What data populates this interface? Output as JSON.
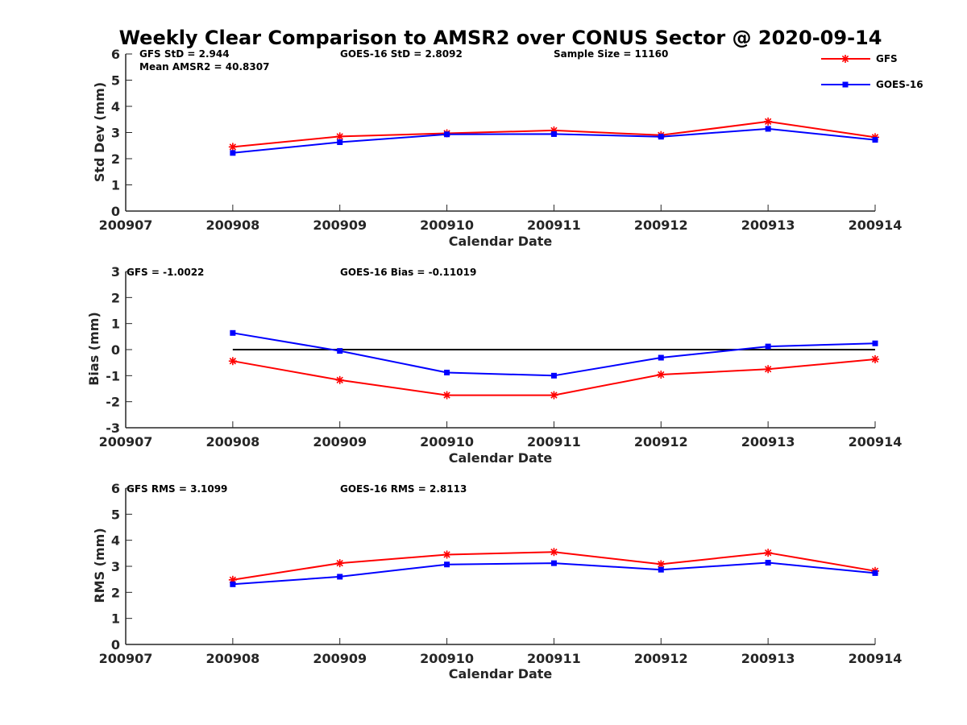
{
  "title": "Weekly Clear Comparison to AMSR2 over CONUS Sector @ 2020-09-14",
  "legend": [
    {
      "name": "GFS",
      "color": "#ff0000",
      "marker": "asterisk"
    },
    {
      "name": "GOES-16",
      "color": "#0000ff",
      "marker": "square"
    }
  ],
  "panels": [
    {
      "annotations": [
        "GFS StD = 2.944",
        "GOES-16 StD = 2.8092",
        "Sample Size = 11160",
        "Mean AMSR2 = 40.8307"
      ],
      "xlabel": "Calendar Date",
      "ylabel": "Std Dev (mm)"
    },
    {
      "annotations": [
        "GFS = -1.0022",
        "GOES-16 Bias  = -0.11019"
      ],
      "xlabel": "Calendar Date",
      "ylabel": "Bias (mm)"
    },
    {
      "annotations": [
        "GFS RMS = 3.1099",
        "GOES-16 RMS = 2.8113"
      ],
      "xlabel": "Calendar Date",
      "ylabel": "RMS (mm)"
    }
  ],
  "chart_data": [
    {
      "type": "line",
      "title": "Weekly Clear Comparison to AMSR2 over CONUS Sector @ 2020-09-14",
      "xlabel": "Calendar Date",
      "ylabel": "Std Dev (mm)",
      "categories": [
        "200907",
        "200908",
        "200909",
        "200910",
        "200911",
        "200912",
        "200913",
        "200914"
      ],
      "ylim": [
        0,
        6
      ],
      "yticks": [
        0,
        1,
        2,
        3,
        4,
        5,
        6
      ],
      "zero_line": false,
      "series": [
        {
          "name": "GFS",
          "color": "#ff0000",
          "marker": "asterisk",
          "x": [
            "200908",
            "200909",
            "200910",
            "200911",
            "200912",
            "200913",
            "200914"
          ],
          "values": [
            2.45,
            2.85,
            2.97,
            3.08,
            2.9,
            3.42,
            2.82
          ]
        },
        {
          "name": "GOES-16",
          "color": "#0000ff",
          "marker": "square",
          "x": [
            "200908",
            "200909",
            "200910",
            "200911",
            "200912",
            "200913",
            "200914"
          ],
          "values": [
            2.22,
            2.63,
            2.93,
            2.94,
            2.84,
            3.14,
            2.72
          ]
        }
      ]
    },
    {
      "type": "line",
      "xlabel": "Calendar Date",
      "ylabel": "Bias (mm)",
      "categories": [
        "200907",
        "200908",
        "200909",
        "200910",
        "200911",
        "200912",
        "200913",
        "200914"
      ],
      "ylim": [
        -3,
        3
      ],
      "yticks": [
        -3,
        -2,
        -1,
        0,
        1,
        2,
        3
      ],
      "zero_line": true,
      "series": [
        {
          "name": "GFS",
          "color": "#ff0000",
          "marker": "asterisk",
          "x": [
            "200908",
            "200909",
            "200910",
            "200911",
            "200912",
            "200913",
            "200914"
          ],
          "values": [
            -0.44,
            -1.17,
            -1.75,
            -1.75,
            -0.96,
            -0.75,
            -0.37
          ]
        },
        {
          "name": "GOES-16",
          "color": "#0000ff",
          "marker": "square",
          "x": [
            "200908",
            "200909",
            "200910",
            "200911",
            "200912",
            "200913",
            "200914"
          ],
          "values": [
            0.64,
            -0.05,
            -0.88,
            -1.0,
            -0.31,
            0.12,
            0.24
          ]
        }
      ]
    },
    {
      "type": "line",
      "xlabel": "Calendar Date",
      "ylabel": "RMS (mm)",
      "categories": [
        "200907",
        "200908",
        "200909",
        "200910",
        "200911",
        "200912",
        "200913",
        "200914"
      ],
      "ylim": [
        0,
        6
      ],
      "yticks": [
        0,
        1,
        2,
        3,
        4,
        5,
        6
      ],
      "zero_line": false,
      "series": [
        {
          "name": "GFS",
          "color": "#ff0000",
          "marker": "asterisk",
          "x": [
            "200908",
            "200909",
            "200910",
            "200911",
            "200912",
            "200913",
            "200914"
          ],
          "values": [
            2.48,
            3.12,
            3.45,
            3.55,
            3.08,
            3.52,
            2.82
          ]
        },
        {
          "name": "GOES-16",
          "color": "#0000ff",
          "marker": "square",
          "x": [
            "200908",
            "200909",
            "200910",
            "200911",
            "200912",
            "200913",
            "200914"
          ],
          "values": [
            2.31,
            2.6,
            3.07,
            3.12,
            2.87,
            3.14,
            2.74
          ]
        }
      ]
    }
  ]
}
